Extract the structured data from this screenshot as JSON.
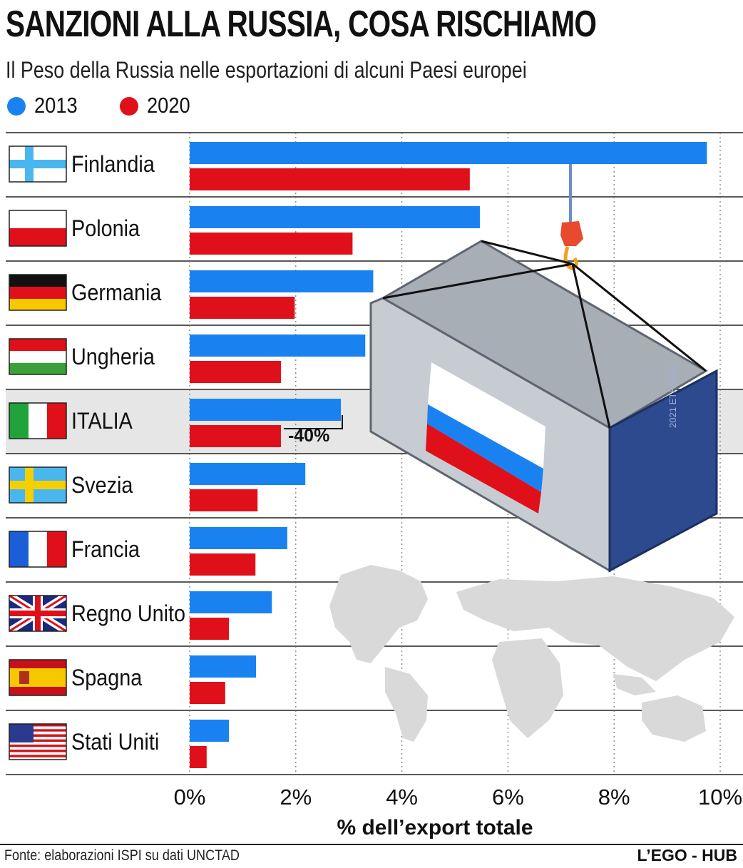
{
  "title": "SANZIONI ALLA RUSSIA, COSA RISCHIAMO",
  "subtitle": "Il Peso della Russia nelle esportazioni di alcuni Paesi europei",
  "legend": [
    {
      "label": "2013",
      "color": "#1a82f0"
    },
    {
      "label": "2020",
      "color": "#e0101a"
    }
  ],
  "colors": {
    "y2013": "#1a82f0",
    "y2020": "#e0101a",
    "highlight_row": "#e6e6e6"
  },
  "chart_data": {
    "type": "bar",
    "orientation": "horizontal",
    "categories": [
      "Finlandia",
      "Polonia",
      "Germania",
      "Ungheria",
      "ITALIA",
      "Svezia",
      "Francia",
      "Regno Unito",
      "Spagna",
      "Stati Uniti"
    ],
    "series": [
      {
        "name": "2013",
        "values": [
          9.75,
          5.47,
          3.46,
          3.31,
          2.85,
          2.18,
          1.84,
          1.55,
          1.25,
          0.74
        ]
      },
      {
        "name": "2020",
        "values": [
          5.28,
          3.07,
          1.98,
          1.72,
          1.72,
          1.28,
          1.24,
          0.74,
          0.67,
          0.32
        ]
      }
    ],
    "xlabel": "% dell’export totale",
    "xlim": [
      0,
      10
    ],
    "ticks": [
      "0%",
      "2%",
      "4%",
      "6%",
      "8%",
      "10%"
    ],
    "grid": "vertical dotted",
    "highlight": "ITALIA",
    "annotation": {
      "category": "ITALIA",
      "text": "-40%"
    },
    "flag_icons": [
      "finland-flag-icon",
      "poland-flag-icon",
      "germany-flag-icon",
      "hungary-flag-icon",
      "italy-flag-icon",
      "sweden-flag-icon",
      "france-flag-icon",
      "uk-flag-icon",
      "spain-flag-icon",
      "usa-flag-icon"
    ]
  },
  "container": {
    "serial": "2021 ETH1889"
  },
  "source": "Fonte: elaborazioni ISPI su dati UNCTAD",
  "brand": "L’EGO - HUB"
}
